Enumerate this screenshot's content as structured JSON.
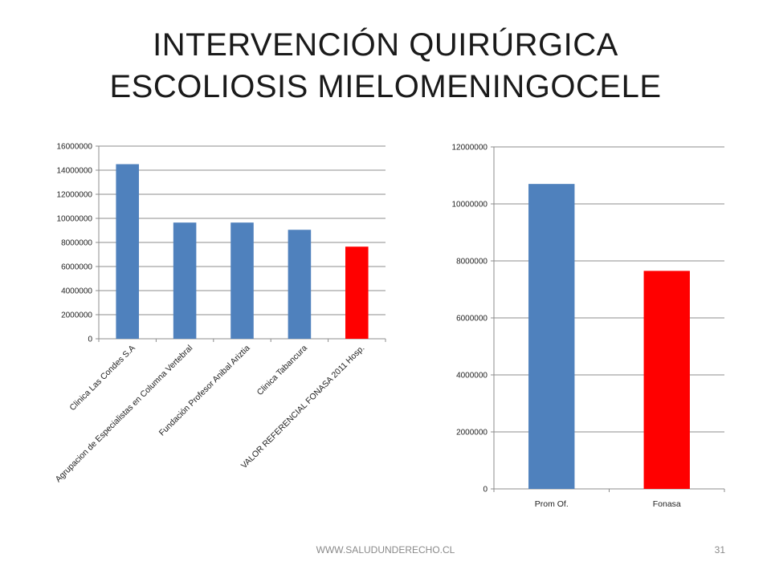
{
  "title": {
    "line1": "INTERVENCIÓN QUIRÚRGICA",
    "line2": "ESCOLIOSIS MIELOMENINGOCELE"
  },
  "footer": {
    "url": "WWW.SALUDUNDERECHO.CL",
    "page": "31"
  },
  "colors": {
    "blue": "#4f81bd",
    "red": "#ff0000",
    "grid": "#8c8c8c"
  },
  "chart_data": [
    {
      "type": "bar",
      "categories": [
        "Clinica Las Condes S.A",
        "Agrupacion de Especialistas en Columna Vertebral",
        "Fundación Profesor Anibal Ariztia",
        "Clinica Tabancura",
        "VALOR REFERENCIAL FONASA 2011 Hosp."
      ],
      "values": [
        14500000,
        9650000,
        9650000,
        9050000,
        7650000
      ],
      "bar_colors": [
        "#4f81bd",
        "#4f81bd",
        "#4f81bd",
        "#4f81bd",
        "#ff0000"
      ],
      "ylim": [
        0,
        16000000
      ],
      "yticks": [
        "0",
        "2000000",
        "4000000",
        "6000000",
        "8000000",
        "10000000",
        "12000000",
        "14000000",
        "16000000"
      ],
      "grid": true,
      "legend": "none"
    },
    {
      "type": "bar",
      "categories": [
        "Prom Of.",
        "Fonasa"
      ],
      "values": [
        10700000,
        7650000
      ],
      "bar_colors": [
        "#4f81bd",
        "#ff0000"
      ],
      "ylim": [
        0,
        12000000
      ],
      "yticks": [
        "0",
        "2000000",
        "4000000",
        "6000000",
        "8000000",
        "10000000",
        "12000000"
      ],
      "grid": true,
      "legend": "none"
    }
  ]
}
